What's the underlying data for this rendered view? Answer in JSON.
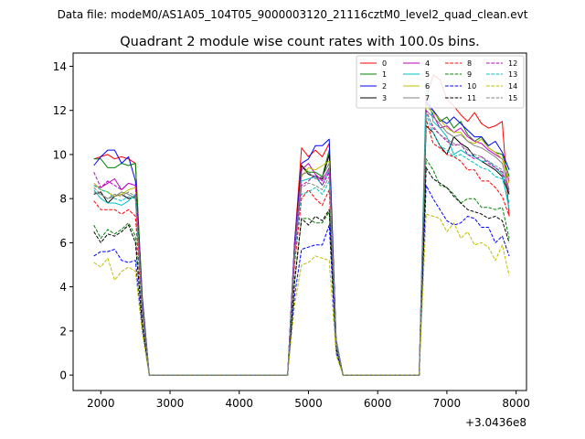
{
  "file_label": "Data file: modeM0/AS1A05_104T05_9000003120_21116cztM0_level2_quad_clean.evt",
  "chart_data": {
    "type": "line",
    "title": "Quadrant 2 module wise count rates with 100.0s bins.",
    "xlabel": "",
    "ylabel": "",
    "offset_label": "+3.0436e8",
    "xlim": [
      1600,
      8150
    ],
    "ylim": [
      -0.7,
      14.6
    ],
    "x_ticks": [
      2000,
      3000,
      4000,
      5000,
      6000,
      7000,
      8000
    ],
    "x_tick_labels": [
      "2000",
      "3000",
      "4000",
      "5000",
      "6000",
      "7000",
      "8000"
    ],
    "y_ticks": [
      0,
      2,
      4,
      6,
      8,
      10,
      12,
      14
    ],
    "y_tick_labels": [
      "0",
      "2",
      "4",
      "6",
      "8",
      "10",
      "12",
      "14"
    ],
    "legend_position": "top-right",
    "x": [
      1900,
      2000,
      2100,
      2200,
      2300,
      2400,
      2500,
      2600,
      2700,
      2800,
      2900,
      3000,
      3100,
      3200,
      3300,
      3400,
      3500,
      3600,
      3700,
      3800,
      3900,
      4000,
      4100,
      4200,
      4300,
      4400,
      4500,
      4600,
      4700,
      4800,
      4900,
      5000,
      5100,
      5200,
      5300,
      5400,
      5500,
      5600,
      5700,
      5800,
      5900,
      6000,
      6100,
      6200,
      6300,
      6400,
      6500,
      6600,
      6700,
      6800,
      6900,
      7000,
      7100,
      7200,
      7300,
      7400,
      7500,
      7600,
      7700,
      7800,
      7900
    ],
    "series": [
      {
        "name": "0",
        "color": "#ff0000",
        "dash": "solid",
        "values": [
          9.8,
          9.9,
          10.0,
          9.8,
          9.9,
          9.8,
          9.6,
          3.5,
          0,
          0,
          0,
          0,
          0,
          0,
          0,
          0,
          0,
          0,
          0,
          0,
          0,
          0,
          0,
          0,
          0,
          0,
          0,
          0,
          0,
          6.0,
          10.3,
          9.9,
          10.2,
          9.9,
          10.5,
          1.5,
          0,
          0,
          0,
          0,
          0,
          0,
          0,
          0,
          0,
          0,
          0,
          0,
          12.5,
          13.6,
          13.4,
          12.5,
          12.2,
          11.8,
          11.5,
          11.9,
          11.4,
          11.2,
          11.3,
          11.5,
          7.2
        ]
      },
      {
        "name": "1",
        "color": "#008000",
        "dash": "solid",
        "values": [
          9.8,
          9.8,
          9.4,
          9.4,
          9.6,
          9.5,
          9.6,
          3.5,
          0,
          0,
          0,
          0,
          0,
          0,
          0,
          0,
          0,
          0,
          0,
          0,
          0,
          0,
          0,
          0,
          0,
          0,
          0,
          0,
          0,
          6.0,
          9.5,
          9.2,
          9.2,
          9.0,
          10.2,
          1.5,
          0,
          0,
          0,
          0,
          0,
          0,
          0,
          0,
          0,
          0,
          0,
          0,
          12.3,
          12.0,
          11.5,
          11.7,
          11.2,
          11.5,
          10.9,
          10.6,
          10.8,
          10.3,
          10.1,
          10.0,
          9.0
        ]
      },
      {
        "name": "2",
        "color": "#0000ff",
        "dash": "solid",
        "values": [
          9.5,
          9.9,
          10.2,
          10.2,
          9.6,
          9.9,
          8.8,
          3.4,
          0,
          0,
          0,
          0,
          0,
          0,
          0,
          0,
          0,
          0,
          0,
          0,
          0,
          0,
          0,
          0,
          0,
          0,
          0,
          0,
          0,
          6.0,
          9.6,
          9.8,
          10.4,
          10.4,
          10.7,
          1.6,
          0,
          0,
          0,
          0,
          0,
          0,
          0,
          0,
          0,
          0,
          0,
          0,
          12.4,
          12.0,
          11.6,
          11.4,
          11.7,
          11.4,
          11.1,
          10.8,
          10.8,
          10.4,
          10.6,
          10.1,
          9.3
        ]
      },
      {
        "name": "3",
        "color": "#000000",
        "dash": "solid",
        "values": [
          8.2,
          8.3,
          7.8,
          8.1,
          8.2,
          8.0,
          8.1,
          3.0,
          0,
          0,
          0,
          0,
          0,
          0,
          0,
          0,
          0,
          0,
          0,
          0,
          0,
          0,
          0,
          0,
          0,
          0,
          0,
          0,
          0,
          5.5,
          9.5,
          9.1,
          9.0,
          8.9,
          10.0,
          1.4,
          0,
          0,
          0,
          0,
          0,
          0,
          0,
          0,
          0,
          0,
          0,
          0,
          11.3,
          11.0,
          10.4,
          10.0,
          10.8,
          10.5,
          10.3,
          9.9,
          9.7,
          9.5,
          9.3,
          9.0,
          8.2
        ]
      },
      {
        "name": "4",
        "color": "#bf00bf",
        "dash": "solid",
        "values": [
          8.6,
          8.5,
          8.7,
          8.9,
          8.4,
          8.7,
          8.6,
          3.2,
          0,
          0,
          0,
          0,
          0,
          0,
          0,
          0,
          0,
          0,
          0,
          0,
          0,
          0,
          0,
          0,
          0,
          0,
          0,
          0,
          0,
          5.8,
          9.3,
          9.6,
          9.1,
          8.8,
          9.4,
          1.5,
          0,
          0,
          0,
          0,
          0,
          0,
          0,
          0,
          0,
          0,
          0,
          0,
          12.5,
          11.8,
          11.2,
          11.3,
          11.0,
          11.2,
          10.8,
          10.6,
          10.5,
          10.2,
          10.0,
          9.8,
          8.8
        ]
      },
      {
        "name": "5",
        "color": "#00bfbf",
        "dash": "solid",
        "values": [
          8.4,
          8.0,
          7.8,
          7.8,
          7.7,
          7.9,
          8.2,
          3.1,
          0,
          0,
          0,
          0,
          0,
          0,
          0,
          0,
          0,
          0,
          0,
          0,
          0,
          0,
          0,
          0,
          0,
          0,
          0,
          0,
          0,
          5.5,
          8.8,
          8.9,
          9.0,
          8.6,
          9.3,
          1.4,
          0,
          0,
          0,
          0,
          0,
          0,
          0,
          0,
          0,
          0,
          0,
          0,
          13.3,
          11.5,
          11.2,
          10.8,
          10.0,
          10.2,
          10.0,
          9.9,
          9.7,
          9.7,
          9.4,
          9.1,
          7.5
        ]
      },
      {
        "name": "6",
        "color": "#bfbf00",
        "dash": "solid",
        "values": [
          8.7,
          8.4,
          8.3,
          8.1,
          8.2,
          8.4,
          8.5,
          3.1,
          0,
          0,
          0,
          0,
          0,
          0,
          0,
          0,
          0,
          0,
          0,
          0,
          0,
          0,
          0,
          0,
          0,
          0,
          0,
          0,
          0,
          5.6,
          9.0,
          9.4,
          9.3,
          9.5,
          9.7,
          1.5,
          0,
          0,
          0,
          0,
          0,
          0,
          0,
          0,
          0,
          0,
          0,
          0,
          12.2,
          11.9,
          11.6,
          11.2,
          11.0,
          11.0,
          10.6,
          10.5,
          10.7,
          10.3,
          10.1,
          9.8,
          8.7
        ]
      },
      {
        "name": "7",
        "color": "#808080",
        "dash": "solid",
        "values": [
          8.3,
          8.2,
          8.0,
          8.1,
          8.3,
          8.2,
          8.0,
          3.0,
          0,
          0,
          0,
          0,
          0,
          0,
          0,
          0,
          0,
          0,
          0,
          0,
          0,
          0,
          0,
          0,
          0,
          0,
          0,
          0,
          0,
          5.5,
          9.1,
          9.2,
          8.9,
          9.0,
          9.6,
          1.4,
          0,
          0,
          0,
          0,
          0,
          0,
          0,
          0,
          0,
          0,
          0,
          0,
          12.0,
          11.7,
          11.4,
          11.0,
          10.8,
          10.9,
          10.6,
          10.4,
          10.3,
          10.1,
          9.9,
          9.6,
          8.4
        ]
      },
      {
        "name": "8",
        "color": "#ff0000",
        "dash": "dashed",
        "values": [
          7.9,
          7.5,
          7.5,
          7.5,
          7.3,
          7.5,
          7.2,
          2.8,
          0,
          0,
          0,
          0,
          0,
          0,
          0,
          0,
          0,
          0,
          0,
          0,
          0,
          0,
          0,
          0,
          0,
          0,
          0,
          0,
          0,
          5.0,
          8.0,
          8.4,
          8.0,
          7.7,
          8.4,
          1.3,
          0,
          0,
          0,
          0,
          0,
          0,
          0,
          0,
          0,
          0,
          0,
          0,
          11.6,
          10.5,
          10.3,
          10.0,
          9.9,
          9.7,
          9.3,
          9.3,
          8.8,
          8.8,
          8.5,
          8.1,
          7.2
        ]
      },
      {
        "name": "9",
        "color": "#008000",
        "dash": "dashed",
        "values": [
          6.8,
          6.2,
          6.6,
          6.4,
          6.6,
          6.9,
          6.3,
          2.4,
          0,
          0,
          0,
          0,
          0,
          0,
          0,
          0,
          0,
          0,
          0,
          0,
          0,
          0,
          0,
          0,
          0,
          0,
          0,
          0,
          0,
          4.3,
          7.1,
          7.1,
          6.9,
          6.9,
          7.4,
          1.2,
          0,
          0,
          0,
          0,
          0,
          0,
          0,
          0,
          0,
          0,
          0,
          0,
          9.8,
          9.3,
          8.6,
          8.5,
          8.2,
          7.8,
          8.0,
          8.0,
          7.6,
          7.6,
          7.5,
          7.6,
          6.2
        ]
      },
      {
        "name": "10",
        "color": "#0000ff",
        "dash": "dashed",
        "values": [
          5.4,
          5.6,
          5.6,
          5.7,
          5.2,
          5.1,
          5.2,
          2.0,
          0,
          0,
          0,
          0,
          0,
          0,
          0,
          0,
          0,
          0,
          0,
          0,
          0,
          0,
          0,
          0,
          0,
          0,
          0,
          0,
          0,
          3.6,
          5.7,
          5.8,
          5.9,
          5.9,
          6.8,
          1.0,
          0,
          0,
          0,
          0,
          0,
          0,
          0,
          0,
          0,
          0,
          0,
          0,
          8.6,
          8.0,
          7.5,
          7.0,
          6.8,
          6.9,
          7.2,
          7.1,
          6.7,
          6.7,
          6.0,
          6.3,
          5.4
        ]
      },
      {
        "name": "11",
        "color": "#000000",
        "dash": "dashed",
        "values": [
          6.5,
          6.0,
          6.4,
          6.3,
          6.5,
          6.8,
          6.0,
          2.3,
          0,
          0,
          0,
          0,
          0,
          0,
          0,
          0,
          0,
          0,
          0,
          0,
          0,
          0,
          0,
          0,
          0,
          0,
          0,
          0,
          0,
          4.2,
          7.1,
          6.8,
          7.2,
          7.0,
          7.5,
          1.2,
          0,
          0,
          0,
          0,
          0,
          0,
          0,
          0,
          0,
          0,
          0,
          0,
          9.4,
          8.9,
          8.7,
          8.5,
          8.1,
          7.8,
          7.5,
          7.4,
          7.3,
          7.1,
          7.2,
          7.0,
          6.0
        ]
      },
      {
        "name": "12",
        "color": "#bf00bf",
        "dash": "dashed",
        "values": [
          9.2,
          8.5,
          8.8,
          8.6,
          8.4,
          8.7,
          8.6,
          3.1,
          0,
          0,
          0,
          0,
          0,
          0,
          0,
          0,
          0,
          0,
          0,
          0,
          0,
          0,
          0,
          0,
          0,
          0,
          0,
          0,
          0,
          5.7,
          8.6,
          8.8,
          9.1,
          8.6,
          9.2,
          1.4,
          0,
          0,
          0,
          0,
          0,
          0,
          0,
          0,
          0,
          0,
          0,
          0,
          12.0,
          11.2,
          10.9,
          10.6,
          10.4,
          10.5,
          10.0,
          9.8,
          9.9,
          9.6,
          9.4,
          9.2,
          8.3
        ]
      },
      {
        "name": "13",
        "color": "#00bfbf",
        "dash": "dashed",
        "values": [
          8.6,
          8.4,
          8.3,
          8.0,
          7.9,
          8.1,
          8.0,
          3.0,
          0,
          0,
          0,
          0,
          0,
          0,
          0,
          0,
          0,
          0,
          0,
          0,
          0,
          0,
          0,
          0,
          0,
          0,
          0,
          0,
          0,
          5.4,
          8.2,
          8.3,
          8.5,
          8.2,
          8.8,
          1.4,
          0,
          0,
          0,
          0,
          0,
          0,
          0,
          0,
          0,
          0,
          0,
          0,
          11.8,
          11.0,
          10.4,
          10.2,
          9.9,
          10.0,
          9.8,
          9.6,
          9.4,
          9.3,
          9.0,
          8.9,
          7.8
        ]
      },
      {
        "name": "14",
        "color": "#bfbf00",
        "dash": "dashed",
        "values": [
          5.1,
          4.9,
          5.3,
          4.3,
          4.7,
          4.9,
          4.7,
          1.9,
          0,
          0,
          0,
          0,
          0,
          0,
          0,
          0,
          0,
          0,
          0,
          0,
          0,
          0,
          0,
          0,
          0,
          0,
          0,
          0,
          0,
          3.2,
          5.0,
          5.1,
          5.4,
          5.3,
          5.2,
          0.9,
          0,
          0,
          0,
          0,
          0,
          0,
          0,
          0,
          0,
          0,
          0,
          0,
          7.3,
          7.2,
          7.1,
          6.5,
          6.9,
          6.2,
          6.5,
          5.9,
          6.0,
          5.8,
          5.2,
          5.9,
          4.5
        ]
      },
      {
        "name": "15",
        "color": "#808080",
        "dash": "dashed",
        "values": [
          8.5,
          8.2,
          8.0,
          8.2,
          8.1,
          8.3,
          8.1,
          3.0,
          0,
          0,
          0,
          0,
          0,
          0,
          0,
          0,
          0,
          0,
          0,
          0,
          0,
          0,
          0,
          0,
          0,
          0,
          0,
          0,
          0,
          5.5,
          8.5,
          8.7,
          8.6,
          8.4,
          9.0,
          1.4,
          0,
          0,
          0,
          0,
          0,
          0,
          0,
          0,
          0,
          0,
          0,
          0,
          11.9,
          11.3,
          10.9,
          10.7,
          10.5,
          10.4,
          10.2,
          10.0,
          9.9,
          9.7,
          9.5,
          9.3,
          8.3
        ]
      }
    ]
  }
}
